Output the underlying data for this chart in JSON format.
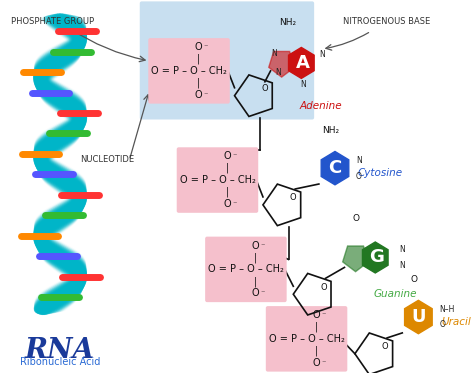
{
  "bg_color": "#ffffff",
  "helix_color": "#00b5c8",
  "helix_shadow": "#008fa0",
  "rna_label": "RNA",
  "rna_sublabel": "Ribonucleic Acid",
  "rna_color": "#1a3a9a",
  "rna_sub_color": "#2a6ad4",
  "phosphate_label": "PHOSPHATE GROUP",
  "nitrogenous_label": "NITROGENOUS BASE",
  "nucleotide_label": "NUCLEOTIDE",
  "adenine_bg": "#c8dff0",
  "phosphate_box_color": "#f5c0cc",
  "bar_colors": [
    "#ff3333",
    "#33bb33",
    "#ff8800",
    "#5555ff",
    "#ff3333",
    "#33bb33",
    "#ff8800",
    "#5555ff",
    "#ff3333",
    "#33bb33",
    "#ff8800",
    "#5555ff",
    "#ff3333",
    "#33bb33"
  ],
  "bases": [
    {
      "name": "Adenine",
      "letter": "A",
      "color": "#cc1111",
      "lcolor": "#cc1111"
    },
    {
      "name": "Cytosine",
      "letter": "C",
      "color": "#2255cc",
      "lcolor": "#2255cc"
    },
    {
      "name": "Guanine",
      "letter": "G",
      "color": "#227722",
      "lcolor": "#44aa44"
    },
    {
      "name": "Uracil",
      "letter": "U",
      "color": "#dd8800",
      "lcolor": "#dd8800"
    }
  ]
}
